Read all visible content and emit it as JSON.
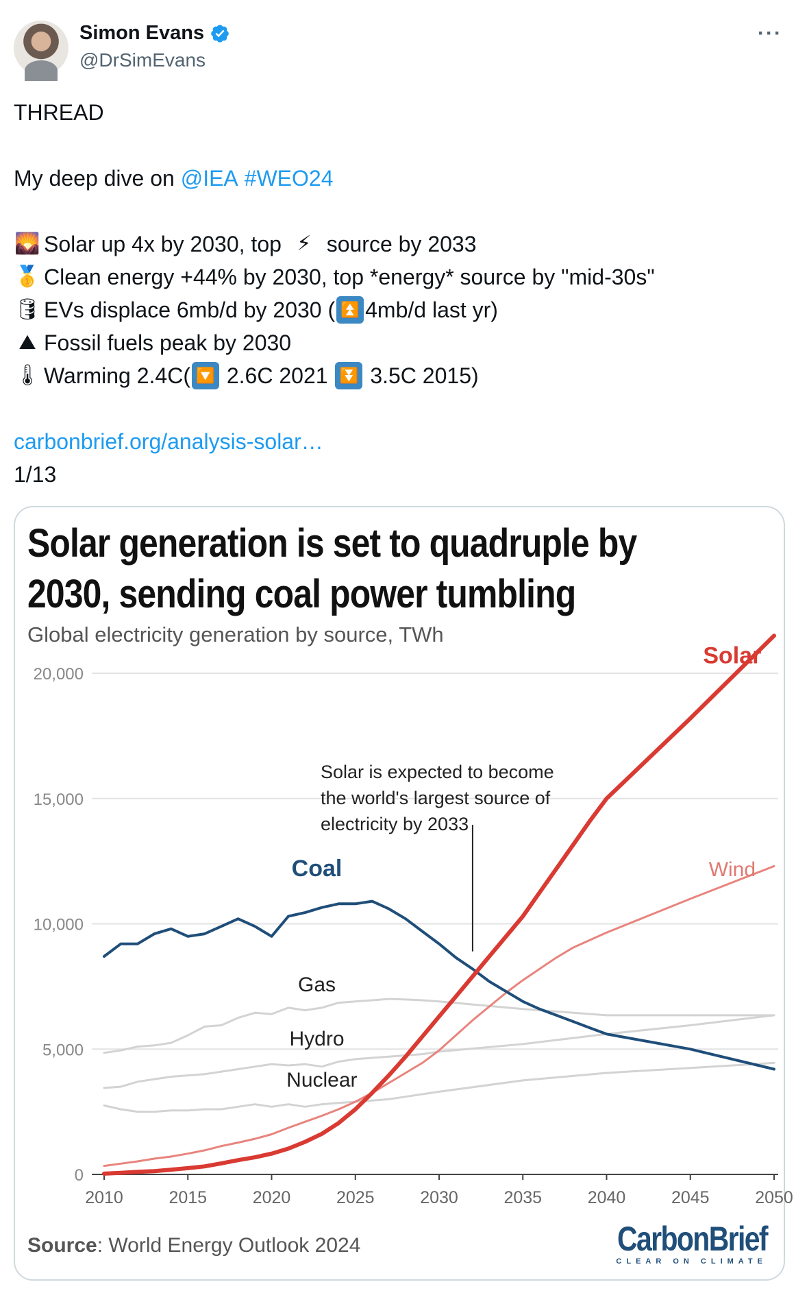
{
  "author": {
    "name": "Simon Evans",
    "handle": "@DrSimEvans",
    "more_label": "···"
  },
  "tweet": {
    "line1": "THREAD",
    "line2_prefix": "My deep dive on ",
    "mention": "@IEA",
    "hashtag": "#WEO24",
    "bullets": [
      {
        "emoji": "🌄",
        "text": "Solar up 4x by 2030, top ",
        "emoji2": "⚡",
        "text2": " source by 2033"
      },
      {
        "emoji": "🥇",
        "text": "Clean energy +44% by 2030, top *energy* source by \"mid-30s\""
      },
      {
        "emoji": "🛢",
        "text": "EVs displace 6mb/d by 2030 (",
        "box": "⏫",
        "text2": "4mb/d last yr)"
      },
      {
        "emoji": "⛰",
        "text": "Fossil fuels peak by 2030"
      },
      {
        "emoji": "🌡",
        "text": "Warming 2.4C(",
        "box": "🔽",
        "text2": " 2.6C 2021 ",
        "box2": "⏬",
        "text3": " 3.5C 2015)"
      }
    ],
    "url": "carbonbrief.org/analysis-solar…",
    "counter": "1/13"
  },
  "card": {
    "source_label": "Source",
    "source_text": ": World Energy Outlook 2024",
    "brand_main": "CarbonBrief",
    "brand_tag": "CLEAR ON CLIMATE"
  },
  "chart_data": {
    "type": "line",
    "title": "Solar generation is set to quadruple by 2030, sending coal power tumbling",
    "subtitle": "Global electricity generation by source, TWh",
    "xlabel": "",
    "ylabel": "",
    "xlim": [
      2010,
      2050
    ],
    "ylim": [
      0,
      20000
    ],
    "xticks": [
      2010,
      2015,
      2020,
      2025,
      2030,
      2035,
      2040,
      2045,
      2050
    ],
    "yticks": [
      0,
      5000,
      10000,
      15000,
      20000
    ],
    "ytick_labels": [
      "0",
      "5,000",
      "10,000",
      "15,000",
      "20,000"
    ],
    "annotation": [
      "Solar is expected to become",
      "the world's largest source of",
      "electricity by 2033"
    ],
    "annotation_x": 2032,
    "series": [
      {
        "name": "Solar",
        "color": "#d93a32",
        "width": 6,
        "x": [
          2010,
          2011,
          2012,
          2013,
          2014,
          2015,
          2016,
          2017,
          2018,
          2019,
          2020,
          2021,
          2022,
          2023,
          2024,
          2025,
          2026,
          2027,
          2028,
          2029,
          2030,
          2031,
          2032,
          2033,
          2034,
          2035,
          2036,
          2037,
          2038,
          2039,
          2040,
          2045,
          2050
        ],
        "values": [
          30,
          60,
          100,
          130,
          190,
          250,
          320,
          440,
          570,
          680,
          830,
          1030,
          1300,
          1620,
          2050,
          2600,
          3250,
          3950,
          4700,
          5500,
          6300,
          7100,
          7900,
          8700,
          9500,
          10300,
          11250,
          12200,
          13150,
          14100,
          15000,
          18200,
          21500
        ]
      },
      {
        "name": "Wind",
        "color": "#e8847d",
        "width": 3,
        "x": [
          2010,
          2011,
          2012,
          2013,
          2014,
          2015,
          2016,
          2017,
          2018,
          2019,
          2020,
          2021,
          2022,
          2023,
          2024,
          2025,
          2026,
          2027,
          2028,
          2029,
          2030,
          2031,
          2032,
          2033,
          2034,
          2035,
          2036,
          2037,
          2038,
          2039,
          2040,
          2045,
          2050
        ],
        "values": [
          340,
          430,
          520,
          630,
          710,
          830,
          960,
          1130,
          1270,
          1420,
          1600,
          1860,
          2100,
          2340,
          2600,
          2900,
          3250,
          3650,
          4050,
          4450,
          4950,
          5550,
          6150,
          6700,
          7250,
          7750,
          8200,
          8650,
          9050,
          9350,
          9650,
          11000,
          12300
        ]
      },
      {
        "name": "Coal",
        "color": "#1f4e79",
        "width": 4,
        "x": [
          2010,
          2011,
          2012,
          2013,
          2014,
          2015,
          2016,
          2017,
          2018,
          2019,
          2020,
          2021,
          2022,
          2023,
          2024,
          2025,
          2026,
          2027,
          2028,
          2029,
          2030,
          2031,
          2032,
          2033,
          2034,
          2035,
          2036,
          2037,
          2038,
          2039,
          2040,
          2045,
          2050
        ],
        "values": [
          8700,
          9200,
          9200,
          9600,
          9800,
          9500,
          9600,
          9900,
          10200,
          9900,
          9500,
          10300,
          10450,
          10650,
          10800,
          10800,
          10900,
          10600,
          10200,
          9700,
          9200,
          8650,
          8200,
          7700,
          7300,
          6900,
          6600,
          6350,
          6100,
          5850,
          5600,
          5000,
          4200
        ]
      },
      {
        "name": "Gas",
        "color": "#d3d3d3",
        "width": 3,
        "x": [
          2010,
          2011,
          2012,
          2013,
          2014,
          2015,
          2016,
          2017,
          2018,
          2019,
          2020,
          2021,
          2022,
          2023,
          2024,
          2025,
          2026,
          2027,
          2028,
          2029,
          2030,
          2035,
          2040,
          2045,
          2050
        ],
        "values": [
          4850,
          4950,
          5100,
          5150,
          5250,
          5550,
          5900,
          5950,
          6250,
          6450,
          6400,
          6650,
          6550,
          6650,
          6850,
          6900,
          6950,
          7000,
          6980,
          6950,
          6900,
          6600,
          6350,
          6350,
          6350
        ]
      },
      {
        "name": "Hydro",
        "color": "#d3d3d3",
        "width": 3,
        "x": [
          2010,
          2011,
          2012,
          2013,
          2014,
          2015,
          2016,
          2017,
          2018,
          2019,
          2020,
          2021,
          2022,
          2023,
          2024,
          2025,
          2026,
          2027,
          2028,
          2029,
          2030,
          2035,
          2040,
          2045,
          2050
        ],
        "values": [
          3450,
          3500,
          3700,
          3800,
          3900,
          3950,
          4000,
          4100,
          4200,
          4300,
          4400,
          4350,
          4400,
          4300,
          4500,
          4600,
          4650,
          4700,
          4750,
          4800,
          4900,
          5200,
          5600,
          5950,
          6350
        ]
      },
      {
        "name": "Nuclear",
        "color": "#d3d3d3",
        "width": 3,
        "x": [
          2010,
          2011,
          2012,
          2013,
          2014,
          2015,
          2016,
          2017,
          2018,
          2019,
          2020,
          2021,
          2022,
          2023,
          2024,
          2025,
          2026,
          2027,
          2028,
          2029,
          2030,
          2035,
          2040,
          2045,
          2050
        ],
        "values": [
          2750,
          2600,
          2500,
          2500,
          2550,
          2550,
          2600,
          2600,
          2700,
          2800,
          2700,
          2800,
          2700,
          2800,
          2850,
          2900,
          2950,
          3000,
          3100,
          3200,
          3300,
          3750,
          4050,
          4250,
          4450
        ]
      }
    ],
    "series_labels": [
      {
        "name": "Solar",
        "text": "Solar",
        "x": 2047.5,
        "y": 20400,
        "color": "#d93a32",
        "bold": true,
        "anchor": "middle"
      },
      {
        "name": "Wind",
        "text": "Wind",
        "x": 2047.5,
        "y": 11900,
        "color": "#e07a72",
        "bold": false,
        "anchor": "middle"
      },
      {
        "name": "Coal",
        "text": "Coal",
        "x": 2022.7,
        "y": 11900,
        "color": "#1f4e79",
        "bold": true,
        "anchor": "middle"
      },
      {
        "name": "Gas",
        "text": "Gas",
        "x": 2022.7,
        "y": 7300,
        "color": "#222",
        "bold": false,
        "anchor": "middle"
      },
      {
        "name": "Hydro",
        "text": "Hydro",
        "x": 2022.7,
        "y": 5150,
        "color": "#222",
        "bold": false,
        "anchor": "middle"
      },
      {
        "name": "Nuclear",
        "text": "Nuclear",
        "x": 2023,
        "y": 3500,
        "color": "#222",
        "bold": false,
        "anchor": "middle"
      }
    ]
  }
}
